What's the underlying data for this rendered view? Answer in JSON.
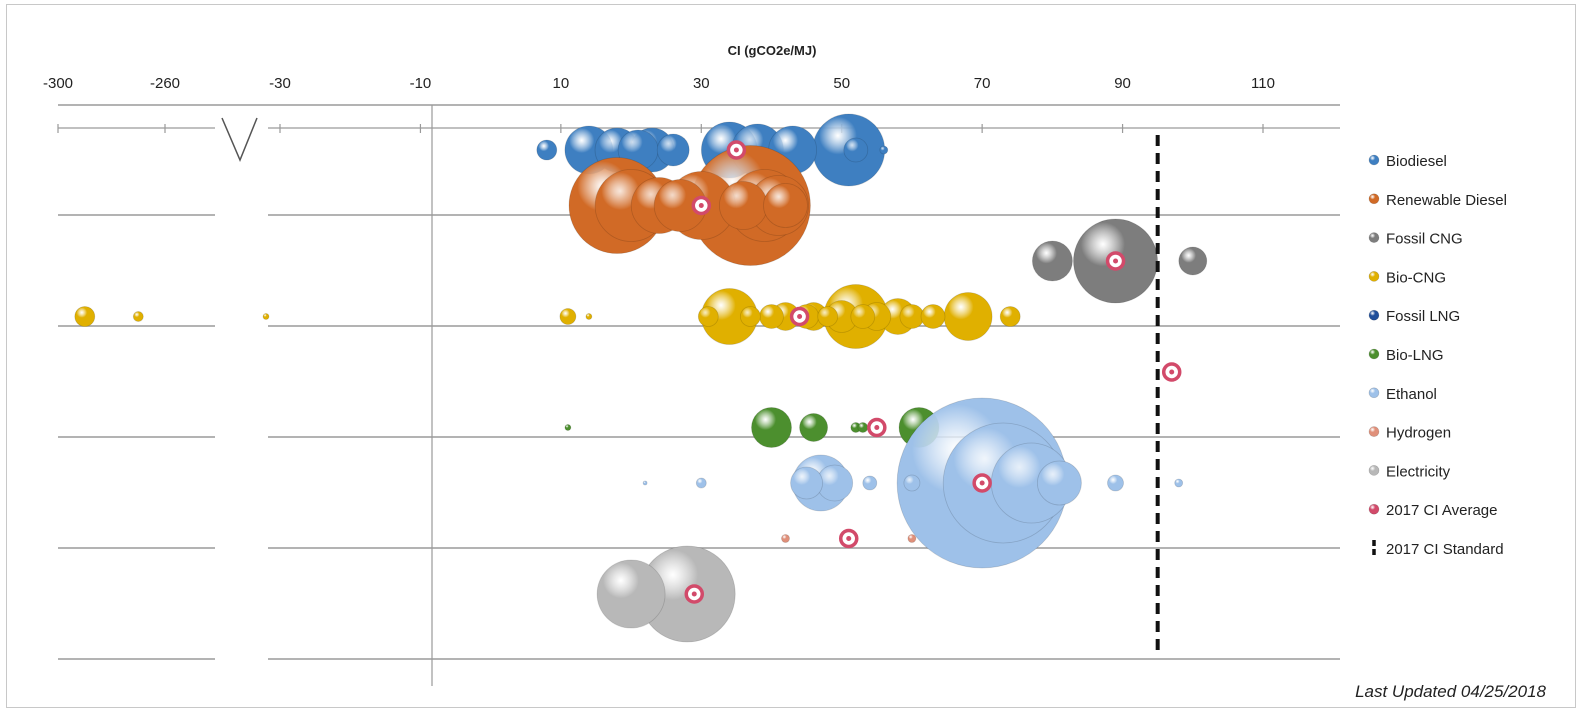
{
  "chart_data": {
    "type": "scatter",
    "subtype": "bubble",
    "xlabel": "CI (gCO2e/MJ)",
    "x_ticks": [
      "-300",
      "-260",
      "-30",
      "-10",
      "10",
      "30",
      "50",
      "70",
      "90",
      "110"
    ],
    "axis_break": "between -260 and -30",
    "grid": "horizontal bands",
    "legend_position": "right",
    "note": "Last Updated 04/25/2018",
    "standard": {
      "name": "2017 CI Standard",
      "x": 95,
      "color": "#111111"
    },
    "series": [
      {
        "name": "Biodiesel",
        "color": "#3e7fc1",
        "row": 1,
        "points": [
          [
            8,
            10
          ],
          [
            14,
            24
          ],
          [
            18,
            22
          ],
          [
            21,
            20
          ],
          [
            23,
            22
          ],
          [
            26,
            16
          ],
          [
            34,
            28
          ],
          [
            38,
            26
          ],
          [
            43,
            24
          ],
          [
            51,
            36
          ],
          [
            52,
            12
          ],
          [
            56,
            4
          ]
        ]
      },
      {
        "name": "Renewable Diesel",
        "color": "#d16a26",
        "row": 2,
        "points": [
          [
            18,
            48
          ],
          [
            20,
            36
          ],
          [
            24,
            28
          ],
          [
            27,
            26
          ],
          [
            30,
            34
          ],
          [
            37,
            60
          ],
          [
            36,
            24
          ],
          [
            39,
            36
          ],
          [
            41,
            30
          ],
          [
            42,
            22
          ]
        ]
      },
      {
        "name": "Fossil CNG",
        "color": "#7d7d7d",
        "row": 3,
        "points": [
          [
            80,
            20
          ],
          [
            89,
            42
          ],
          [
            100,
            14
          ]
        ]
      },
      {
        "name": "Bio-CNG",
        "color": "#e0b000",
        "row": 4,
        "points": [
          [
            -290,
            10
          ],
          [
            -270,
            5
          ],
          [
            -32,
            3
          ],
          [
            11,
            8
          ],
          [
            14,
            3
          ],
          [
            31,
            10
          ],
          [
            34,
            28
          ],
          [
            37,
            10
          ],
          [
            40,
            12
          ],
          [
            42,
            14
          ],
          [
            45,
            12
          ],
          [
            46,
            14
          ],
          [
            48,
            10
          ],
          [
            50,
            16
          ],
          [
            52,
            32
          ],
          [
            53,
            12
          ],
          [
            55,
            14
          ],
          [
            58,
            18
          ],
          [
            60,
            12
          ],
          [
            63,
            12
          ],
          [
            68,
            24
          ],
          [
            74,
            10
          ]
        ]
      },
      {
        "name": "Fossil LNG",
        "color": "#1f4e9a",
        "row": 5,
        "points": []
      },
      {
        "name": "Bio-LNG",
        "color": "#4c8f2e",
        "row": 6,
        "points": [
          [
            11,
            3
          ],
          [
            40,
            20
          ],
          [
            46,
            14
          ],
          [
            52,
            5
          ],
          [
            53,
            5
          ],
          [
            55,
            6
          ],
          [
            61,
            20
          ]
        ]
      },
      {
        "name": "Ethanol",
        "color": "#9ec1e9",
        "row": 7,
        "points": [
          [
            22,
            2
          ],
          [
            30,
            5
          ],
          [
            45,
            16
          ],
          [
            47,
            28
          ],
          [
            49,
            18
          ],
          [
            54,
            7
          ],
          [
            60,
            8
          ],
          [
            70,
            85
          ],
          [
            73,
            60
          ],
          [
            77,
            40
          ],
          [
            81,
            22
          ],
          [
            89,
            8
          ],
          [
            98,
            4
          ]
        ]
      },
      {
        "name": "Hydrogen",
        "color": "#e0907a",
        "row": 8,
        "points": [
          [
            42,
            4
          ],
          [
            60,
            4
          ]
        ]
      },
      {
        "name": "Electricity",
        "color": "#b8b8b8",
        "row": 9,
        "points": [
          [
            20,
            34
          ],
          [
            28,
            48
          ]
        ]
      }
    ],
    "averages": {
      "name": "2017 CI Average",
      "color": "#d24a6a",
      "points": [
        {
          "row": 1,
          "x": 35
        },
        {
          "row": 2,
          "x": 30
        },
        {
          "row": 3,
          "x": 89
        },
        {
          "row": 4,
          "x": 44
        },
        {
          "row": 5,
          "x": 97
        },
        {
          "row": 6,
          "x": 55
        },
        {
          "row": 7,
          "x": 70
        },
        {
          "row": 8,
          "x": 51
        },
        {
          "row": 9,
          "x": 29
        }
      ]
    }
  }
}
